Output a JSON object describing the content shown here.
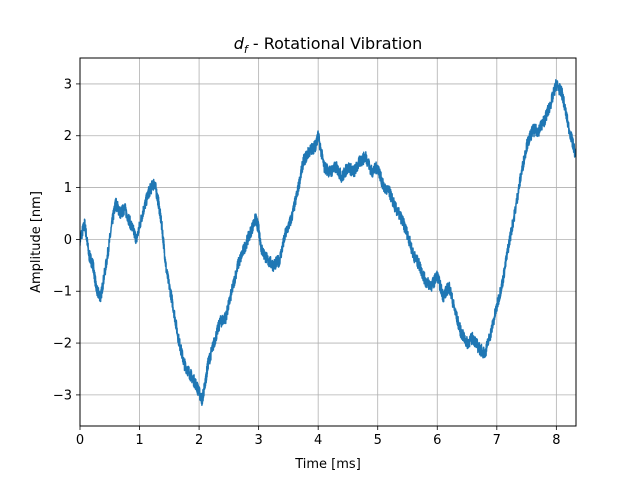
{
  "chart_data": {
    "type": "line",
    "title_main": "d",
    "title_sub": "f",
    "title_rest": " - Rotational Vibration",
    "xlabel": "Time [ms]",
    "ylabel": "Amplitude [nm]",
    "xlim": [
      0,
      8.33
    ],
    "ylim": [
      -3.6,
      3.5
    ],
    "x_ticks": [
      0,
      1,
      2,
      3,
      4,
      5,
      6,
      7,
      8
    ],
    "y_ticks": [
      -3,
      -2,
      -1,
      0,
      1,
      2,
      3
    ],
    "x_tick_labels": [
      "0",
      "1",
      "2",
      "3",
      "4",
      "5",
      "6",
      "7",
      "8"
    ],
    "y_tick_labels": [
      "−3",
      "−2",
      "−1",
      "0",
      "1",
      "2",
      "3"
    ],
    "grid": true,
    "line_color": "#1f77b4",
    "series": [
      {
        "x": [
          0.0,
          0.08,
          0.15,
          0.22,
          0.28,
          0.35,
          0.45,
          0.55,
          0.6,
          0.68,
          0.75,
          0.85,
          0.95,
          1.05,
          1.15,
          1.25,
          1.32,
          1.38,
          1.45,
          1.55,
          1.65,
          1.75,
          1.85,
          1.95,
          2.05,
          2.1,
          2.15,
          2.25,
          2.35,
          2.45,
          2.55,
          2.65,
          2.75,
          2.85,
          2.95,
          3.0,
          3.05,
          3.15,
          3.25,
          3.35,
          3.45,
          3.55,
          3.65,
          3.75,
          3.85,
          3.95,
          4.0,
          4.1,
          4.2,
          4.3,
          4.4,
          4.5,
          4.6,
          4.7,
          4.8,
          4.9,
          5.0,
          5.1,
          5.2,
          5.3,
          5.4,
          5.5,
          5.6,
          5.7,
          5.8,
          5.9,
          6.0,
          6.1,
          6.2,
          6.3,
          6.4,
          6.5,
          6.6,
          6.7,
          6.8,
          6.9,
          7.0,
          7.1,
          7.2,
          7.3,
          7.4,
          7.5,
          7.6,
          7.7,
          7.8,
          7.9,
          8.0,
          8.1,
          8.2,
          8.33
        ],
        "values": [
          0.0,
          0.3,
          -0.3,
          -0.5,
          -1.0,
          -1.1,
          -0.4,
          0.4,
          0.7,
          0.5,
          0.6,
          0.3,
          0.0,
          0.5,
          0.9,
          1.1,
          0.7,
          0.2,
          -0.6,
          -1.2,
          -1.9,
          -2.4,
          -2.6,
          -2.8,
          -3.1,
          -2.8,
          -2.4,
          -2.0,
          -1.6,
          -1.5,
          -1.0,
          -0.5,
          -0.2,
          0.1,
          0.4,
          0.2,
          -0.2,
          -0.4,
          -0.5,
          -0.4,
          0.1,
          0.4,
          0.9,
          1.5,
          1.7,
          1.8,
          2.0,
          1.4,
          1.3,
          1.4,
          1.2,
          1.4,
          1.3,
          1.5,
          1.6,
          1.3,
          1.4,
          1.0,
          0.9,
          0.6,
          0.4,
          0.1,
          -0.3,
          -0.5,
          -0.8,
          -0.9,
          -0.7,
          -1.1,
          -0.9,
          -1.4,
          -1.8,
          -2.0,
          -1.9,
          -2.1,
          -2.2,
          -1.8,
          -1.3,
          -0.8,
          -0.1,
          0.5,
          1.2,
          1.8,
          2.1,
          2.1,
          2.3,
          2.6,
          3.0,
          2.8,
          2.2,
          1.6
        ],
        "noise_seed": 7,
        "noise_amplitude": 0.12
      }
    ]
  }
}
